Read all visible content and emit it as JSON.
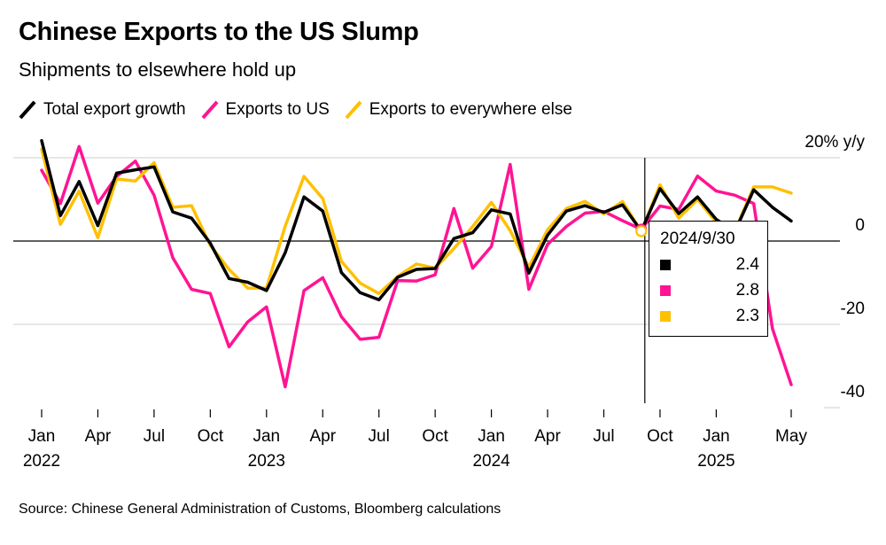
{
  "chart_data": {
    "type": "line",
    "title": "Chinese Exports to the US Slump",
    "subtitle": "Shipments to elsewhere hold up",
    "y_unit_label": "20% y/y",
    "ylim": [
      -40,
      20
    ],
    "yticks": [
      20,
      0,
      -20,
      -40
    ],
    "ytick_labels": [
      "20% y/y",
      "0",
      "-20",
      "-40"
    ],
    "x_tick_labels": [
      {
        "idx": 0,
        "label": "Jan",
        "year": "2022"
      },
      {
        "idx": 3,
        "label": "Apr",
        "year": ""
      },
      {
        "idx": 6,
        "label": "Jul",
        "year": ""
      },
      {
        "idx": 9,
        "label": "Oct",
        "year": ""
      },
      {
        "idx": 12,
        "label": "Jan",
        "year": "2023"
      },
      {
        "idx": 15,
        "label": "Apr",
        "year": ""
      },
      {
        "idx": 18,
        "label": "Jul",
        "year": ""
      },
      {
        "idx": 21,
        "label": "Oct",
        "year": ""
      },
      {
        "idx": 24,
        "label": "Jan",
        "year": "2024"
      },
      {
        "idx": 27,
        "label": "Apr",
        "year": ""
      },
      {
        "idx": 30,
        "label": "Jul",
        "year": ""
      },
      {
        "idx": 33,
        "label": "Oct",
        "year": ""
      },
      {
        "idx": 36,
        "label": "Jan",
        "year": "2025"
      },
      {
        "idx": 40,
        "label": "May",
        "year": ""
      }
    ],
    "months": [
      "2022-01",
      "2022-02",
      "2022-03",
      "2022-04",
      "2022-05",
      "2022-06",
      "2022-07",
      "2022-08",
      "2022-09",
      "2022-10",
      "2022-11",
      "2022-12",
      "2023-01",
      "2023-02",
      "2023-03",
      "2023-04",
      "2023-05",
      "2023-06",
      "2023-07",
      "2023-08",
      "2023-09",
      "2023-10",
      "2023-11",
      "2023-12",
      "2024-01",
      "2024-02",
      "2024-03",
      "2024-04",
      "2024-05",
      "2024-06",
      "2024-07",
      "2024-08",
      "2024-09",
      "2024-10",
      "2024-11",
      "2024-12",
      "2025-01",
      "2025-02",
      "2025-03",
      "2025-04",
      "2025-05"
    ],
    "series": [
      {
        "name": "Total export growth",
        "color": "#000000",
        "values": [
          24.1,
          6.1,
          14.3,
          3.7,
          16.3,
          17.1,
          17.8,
          7.0,
          5.5,
          -0.5,
          -9.0,
          -9.9,
          -11.9,
          -2.8,
          10.6,
          7.2,
          -7.6,
          -12.4,
          -14.1,
          -8.7,
          -6.8,
          -6.6,
          0.6,
          2.0,
          7.5,
          6.5,
          -7.7,
          1.4,
          7.2,
          8.5,
          6.9,
          8.7,
          2.4,
          12.6,
          6.6,
          10.6,
          5.2,
          2.3,
          12.3,
          8.1,
          4.8
        ]
      },
      {
        "name": "Exports to US",
        "color": "#ff1493",
        "values": [
          17.0,
          9.0,
          22.7,
          9.1,
          15.5,
          19.2,
          11.0,
          -4.0,
          -11.6,
          -12.6,
          -25.4,
          -19.4,
          -15.8,
          -35.0,
          -11.9,
          -8.8,
          -18.2,
          -23.6,
          -23.1,
          -9.5,
          -9.6,
          -8.1,
          7.8,
          -6.5,
          -1.3,
          18.4,
          -11.6,
          -0.8,
          3.5,
          6.7,
          7.1,
          4.9,
          2.8,
          8.4,
          7.6,
          15.6,
          12.0,
          11.0,
          9.0,
          -21.0,
          -34.5
        ]
      },
      {
        "name": "Exports to everywhere else",
        "color": "#ffc000",
        "values": [
          22.0,
          4.0,
          12.0,
          0.8,
          14.9,
          14.4,
          18.8,
          8.1,
          8.5,
          -1.0,
          -6.8,
          -11.3,
          -11.3,
          3.6,
          15.5,
          10.2,
          -4.9,
          -10.1,
          -12.6,
          -8.5,
          -5.5,
          -6.5,
          -1.8,
          3.5,
          9.3,
          2.5,
          -6.3,
          2.7,
          7.8,
          9.5,
          6.5,
          9.5,
          2.3,
          13.5,
          5.5,
          10.0,
          4.5,
          2.5,
          13.0,
          13.0,
          11.5
        ]
      }
    ],
    "crosshair_index": 32,
    "tooltip": {
      "date": "2024/9/30",
      "values": [
        "2.4",
        "2.8",
        "2.3"
      ]
    },
    "source": "Source: Chinese General Administration of Customs, Bloomberg calculations"
  }
}
